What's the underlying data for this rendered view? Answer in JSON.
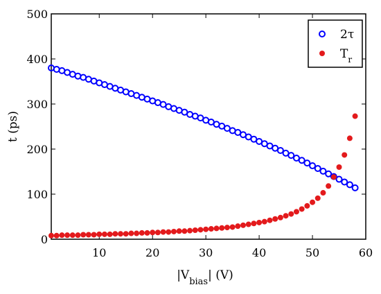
{
  "chart_data": {
    "type": "scatter",
    "title": "",
    "xlabel": {
      "prefix": "|V",
      "sub": "bias",
      "suffix": "| (V)"
    },
    "ylabel": "t (ps)",
    "xlim": [
      1,
      60
    ],
    "ylim": [
      0,
      500
    ],
    "xticks": [
      10,
      20,
      30,
      40,
      50,
      60
    ],
    "yticks": [
      0,
      100,
      200,
      300,
      400,
      500
    ],
    "grid": false,
    "legend_position": "top-right",
    "series": [
      {
        "name": "2τ",
        "legend_label": {
          "main": "2τ",
          "sub": ""
        },
        "marker": "open-circle",
        "color": "#0000ff",
        "x": [
          1,
          2,
          3,
          4,
          5,
          6,
          7,
          8,
          9,
          10,
          11,
          12,
          13,
          14,
          15,
          16,
          17,
          18,
          19,
          20,
          21,
          22,
          23,
          24,
          25,
          26,
          27,
          28,
          29,
          30,
          31,
          32,
          33,
          34,
          35,
          36,
          37,
          38,
          39,
          40,
          41,
          42,
          43,
          44,
          45,
          46,
          47,
          48,
          49,
          50,
          51,
          52,
          53,
          54,
          55,
          56,
          57,
          58
        ],
        "values": [
          380,
          377,
          374,
          370,
          366,
          362,
          359,
          355,
          351,
          347,
          343,
          339,
          335,
          331,
          327,
          323,
          319,
          315,
          311,
          307,
          303,
          299,
          294,
          290,
          286,
          282,
          277,
          273,
          269,
          264,
          260,
          255,
          251,
          246,
          241,
          237,
          232,
          227,
          222,
          217,
          212,
          207,
          202,
          197,
          191,
          186,
          180,
          175,
          169,
          163,
          157,
          151,
          145,
          139,
          133,
          127,
          121,
          114
        ]
      },
      {
        "name": "Tr",
        "legend_label": {
          "main": "T",
          "sub": "r"
        },
        "marker": "filled-circle",
        "color": "#e31a1c",
        "x": [
          1,
          2,
          3,
          4,
          5,
          6,
          7,
          8,
          9,
          10,
          11,
          12,
          13,
          14,
          15,
          16,
          17,
          18,
          19,
          20,
          21,
          22,
          23,
          24,
          25,
          26,
          27,
          28,
          29,
          30,
          31,
          32,
          33,
          34,
          35,
          36,
          37,
          38,
          39,
          40,
          41,
          42,
          43,
          44,
          45,
          46,
          47,
          48,
          49,
          50,
          51,
          52,
          53,
          54,
          55,
          56,
          57,
          58
        ],
        "values": [
          8,
          8,
          9,
          9,
          9,
          9,
          10,
          10,
          10,
          11,
          11,
          11,
          12,
          12,
          12,
          13,
          13,
          14,
          14,
          15,
          15,
          16,
          16,
          17,
          18,
          18,
          19,
          20,
          21,
          22,
          23,
          24,
          25,
          26,
          27,
          29,
          31,
          33,
          35,
          37,
          39,
          42,
          45,
          48,
          52,
          56,
          61,
          67,
          74,
          82,
          91,
          103,
          118,
          138,
          160,
          187,
          224,
          273
        ]
      }
    ]
  }
}
